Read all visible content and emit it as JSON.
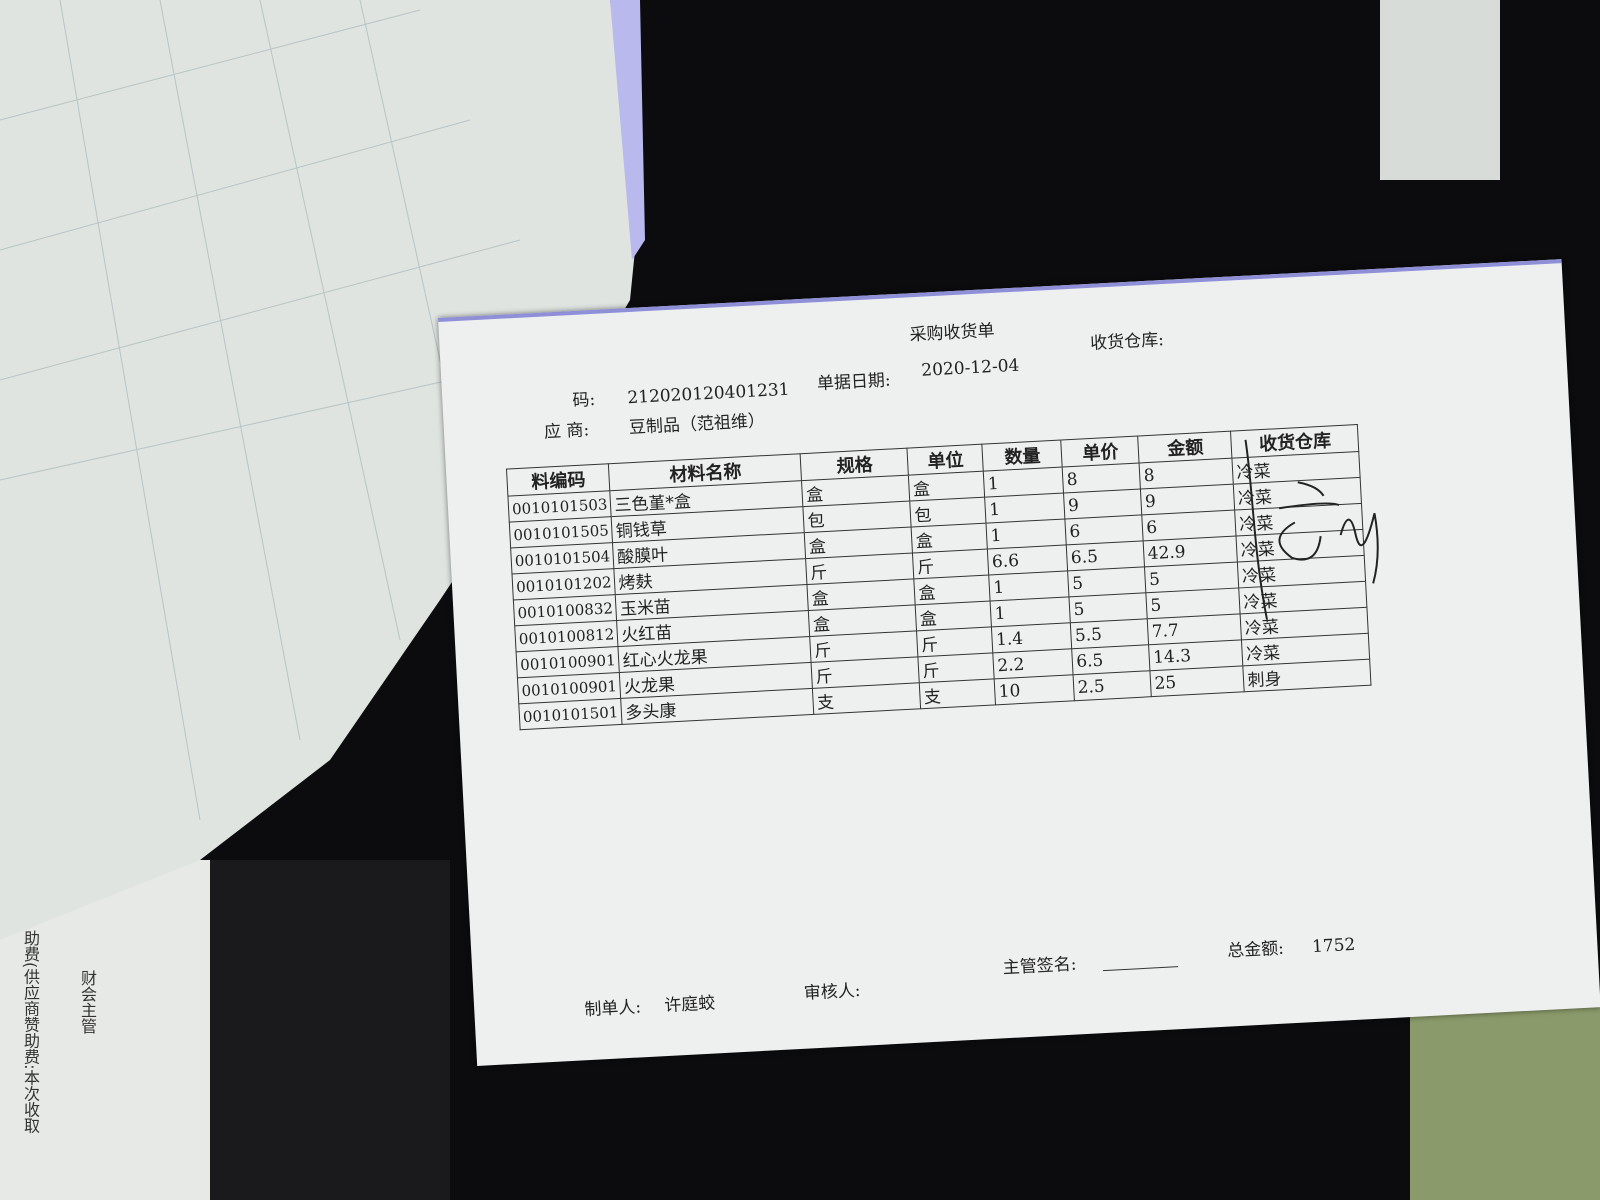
{
  "document": {
    "title": "采购收货单",
    "doc_no_label": "码:",
    "doc_no": "212020120401231",
    "date_label": "单据日期:",
    "date": "2020-12-04",
    "warehouse_label": "收货仓库:",
    "supplier_label": "应 商:",
    "supplier": "豆制品（范祖维）",
    "columns": [
      "料编码",
      "材料名称",
      "规格",
      "单位",
      "数量",
      "单价",
      "金额",
      "收货仓库"
    ],
    "rows": [
      [
        "0010101503",
        "三色堇*盒",
        "盒",
        "盒",
        "1",
        "8",
        "8",
        "冷菜"
      ],
      [
        "0010101505",
        "铜钱草",
        "包",
        "包",
        "1",
        "9",
        "9",
        "冷菜"
      ],
      [
        "0010101504",
        "酸膜叶",
        "盒",
        "盒",
        "1",
        "6",
        "6",
        "冷菜"
      ],
      [
        "0010101202",
        "烤麸",
        "斤",
        "斤",
        "6.6",
        "6.5",
        "42.9",
        "冷菜"
      ],
      [
        "0010100832",
        "玉米苗",
        "盒",
        "盒",
        "1",
        "5",
        "5",
        "冷菜"
      ],
      [
        "0010100812",
        "火红苗",
        "盒",
        "盒",
        "1",
        "5",
        "5",
        "冷菜"
      ],
      [
        "0010100901",
        "红心火龙果",
        "斤",
        "斤",
        "1.4",
        "5.5",
        "7.7",
        "冷菜"
      ],
      [
        "0010100901",
        "火龙果",
        "斤",
        "斤",
        "2.2",
        "6.5",
        "14.3",
        "冷菜"
      ],
      [
        "0010101501",
        "多头康",
        "支",
        "支",
        "10",
        "2.5",
        "25",
        "刺身"
      ]
    ],
    "maker_label": "制单人:",
    "maker": "许庭蛟",
    "reviewer_label": "审核人:",
    "supervisor_label": "主管签名:",
    "total_label": "总金额:",
    "total": "1752"
  },
  "background_sheet": {
    "vertical_text": "助费(供应商赞助费:本次收取",
    "finance_label": "财会主管"
  }
}
